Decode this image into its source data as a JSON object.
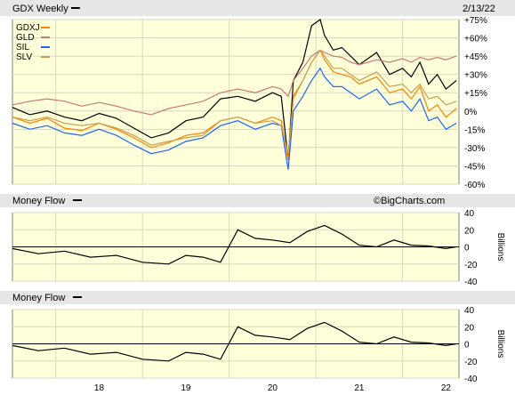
{
  "header": {
    "title": "GDX Weekly",
    "date": "2/13/22"
  },
  "watermark": "©BigCharts.com",
  "colors": {
    "panel_bg": "#ffffd9",
    "grid": "#d8d8c0",
    "header_bg": "#e6e6e6",
    "GDX": "#000000",
    "GDXJ": "#ff8000",
    "GLD": "#c87878",
    "SIL": "#1e64ff",
    "SLV": "#c8a050"
  },
  "x_axis": {
    "labels": [
      "18",
      "19",
      "20",
      "21",
      "22"
    ]
  },
  "chart_data": [
    {
      "type": "line",
      "title": "GDX Weekly",
      "ylabel": "",
      "ylim": [
        -60,
        75
      ],
      "y_ticks": [
        "+75%",
        "+60%",
        "+45%",
        "+30%",
        "+15%",
        "0%",
        "-15%",
        "-30%",
        "-45%",
        "-60%"
      ],
      "y_tick_values": [
        75,
        60,
        45,
        30,
        15,
        0,
        -15,
        -30,
        -45,
        -60
      ],
      "x_categories": [
        "18",
        "19",
        "20",
        "21",
        "22"
      ],
      "x": [
        2017.0,
        2017.2,
        2017.4,
        2017.6,
        2017.8,
        2018.0,
        2018.2,
        2018.4,
        2018.6,
        2018.8,
        2019.0,
        2019.2,
        2019.4,
        2019.6,
        2019.8,
        2020.0,
        2020.1,
        2020.18,
        2020.24,
        2020.35,
        2020.45,
        2020.55,
        2020.6,
        2020.7,
        2020.8,
        2020.9,
        2021.0,
        2021.2,
        2021.35,
        2021.5,
        2021.6,
        2021.7,
        2021.8,
        2021.9,
        2022.0,
        2022.12
      ],
      "series": [
        {
          "name": "GDX",
          "values": [
            3,
            -3,
            0,
            -5,
            -8,
            -2,
            -6,
            -14,
            -22,
            -18,
            -8,
            -5,
            10,
            12,
            8,
            15,
            12,
            -40,
            25,
            40,
            70,
            75,
            62,
            50,
            52,
            45,
            38,
            48,
            30,
            35,
            28,
            40,
            22,
            30,
            18,
            25
          ]
        },
        {
          "name": "GDXJ",
          "values": [
            -5,
            -10,
            -6,
            -14,
            -16,
            -10,
            -15,
            -22,
            -30,
            -26,
            -20,
            -18,
            -8,
            -5,
            -10,
            -5,
            -8,
            -40,
            12,
            25,
            40,
            50,
            42,
            32,
            30,
            28,
            22,
            28,
            15,
            18,
            10,
            20,
            0,
            5,
            -5,
            2
          ]
        },
        {
          "name": "GLD",
          "values": [
            5,
            8,
            10,
            8,
            4,
            7,
            4,
            0,
            -3,
            2,
            5,
            8,
            15,
            18,
            15,
            20,
            18,
            12,
            25,
            35,
            45,
            50,
            48,
            45,
            44,
            40,
            38,
            42,
            40,
            43,
            40,
            44,
            42,
            44,
            42,
            45
          ]
        },
        {
          "name": "SIL",
          "values": [
            -10,
            -15,
            -12,
            -18,
            -20,
            -15,
            -20,
            -28,
            -35,
            -32,
            -25,
            -22,
            -12,
            -8,
            -15,
            -10,
            -12,
            -48,
            0,
            12,
            25,
            35,
            28,
            20,
            20,
            15,
            10,
            18,
            5,
            8,
            0,
            10,
            -8,
            -5,
            -15,
            -10
          ]
        },
        {
          "name": "SLV",
          "values": [
            -5,
            -8,
            -5,
            -10,
            -12,
            -10,
            -14,
            -20,
            -28,
            -25,
            -22,
            -20,
            -8,
            -5,
            -10,
            -8,
            -12,
            -35,
            10,
            25,
            40,
            50,
            45,
            35,
            35,
            30,
            25,
            32,
            20,
            22,
            15,
            22,
            10,
            12,
            5,
            8
          ]
        }
      ]
    },
    {
      "type": "line",
      "title": "Money Flow",
      "ylabel": "Billions",
      "ylim": [
        -40,
        40
      ],
      "y_ticks": [
        "40",
        "20",
        "0",
        "-20",
        "-40"
      ],
      "y_tick_values": [
        40,
        20,
        0,
        -20,
        -40
      ],
      "x": [
        2017.0,
        2017.3,
        2017.6,
        2017.9,
        2018.2,
        2018.5,
        2018.8,
        2019.0,
        2019.2,
        2019.4,
        2019.6,
        2019.8,
        2020.0,
        2020.2,
        2020.4,
        2020.6,
        2020.8,
        2021.0,
        2021.2,
        2021.4,
        2021.6,
        2021.8,
        2022.0,
        2022.12
      ],
      "series": [
        {
          "name": "Money Flow",
          "values": [
            -2,
            -8,
            -5,
            -12,
            -10,
            -18,
            -20,
            -10,
            -12,
            -18,
            20,
            10,
            8,
            5,
            18,
            25,
            15,
            2,
            0,
            8,
            2,
            1,
            -2,
            0
          ]
        }
      ]
    },
    {
      "type": "line",
      "title": "Money Flow",
      "ylabel": "Billions",
      "ylim": [
        -40,
        40
      ],
      "y_ticks": [
        "40",
        "20",
        "0",
        "-20",
        "-40"
      ],
      "y_tick_values": [
        40,
        20,
        0,
        -20,
        -40
      ],
      "x": [
        2017.0,
        2017.3,
        2017.6,
        2017.9,
        2018.2,
        2018.5,
        2018.8,
        2019.0,
        2019.2,
        2019.4,
        2019.6,
        2019.8,
        2020.0,
        2020.2,
        2020.4,
        2020.6,
        2020.8,
        2021.0,
        2021.2,
        2021.4,
        2021.6,
        2021.8,
        2022.0,
        2022.12
      ],
      "series": [
        {
          "name": "Money Flow",
          "values": [
            -2,
            -8,
            -5,
            -12,
            -10,
            -18,
            -20,
            -10,
            -12,
            -18,
            20,
            10,
            8,
            5,
            18,
            25,
            15,
            2,
            0,
            8,
            2,
            1,
            -2,
            0
          ]
        }
      ]
    }
  ]
}
